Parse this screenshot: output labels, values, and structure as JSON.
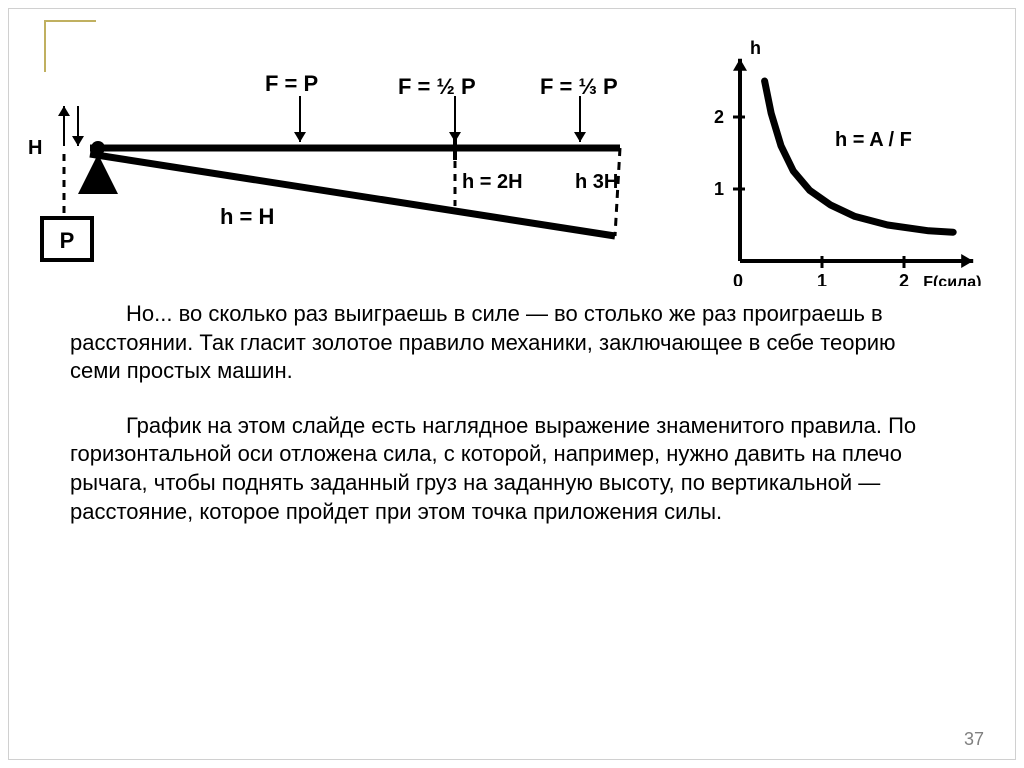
{
  "page_number": "37",
  "paragraphs": {
    "p1": "Но... во сколько раз выиграешь в силе — во столько же раз проиграешь в расстоянии. Так гласит золотое правило механики, заключающее в себе теорию семи простых машин.",
    "p2": "График на этом слайде есть наглядное выражение знаменитого правила. По  горизонтальной оси отложена сила, с которой, например, нужно давить на плечо рычага, чтобы поднять заданный груз на заданную высоту, по вертикальной — расстояние, которое пройдет при этом точка приложения силы."
  },
  "lever_diagram": {
    "labels": {
      "top1": "F = P",
      "top2": "F = ½ P",
      "top3": "F = ⅓ P",
      "bottom_h": "h = H",
      "mid_h2": "h = 2H",
      "mid_h3": "h  3H",
      "weight": "P",
      "left_marker": "H"
    },
    "colors": {
      "stroke": "#000000",
      "bg": "#ffffff"
    },
    "stroke_widths": {
      "thick": 7,
      "med": 4,
      "thin": 2,
      "dash": 3
    }
  },
  "chart": {
    "type": "line",
    "formula": "h = A / F",
    "x_label": "F(сила)",
    "y_label": "h",
    "x_ticks": [
      "0",
      "1",
      "2"
    ],
    "y_ticks": [
      "1",
      "2"
    ],
    "xlim": [
      0,
      2.6
    ],
    "ylim": [
      0,
      2.6
    ],
    "curve_points": [
      [
        0.3,
        2.5
      ],
      [
        0.38,
        2.05
      ],
      [
        0.5,
        1.6
      ],
      [
        0.65,
        1.25
      ],
      [
        0.85,
        0.98
      ],
      [
        1.1,
        0.78
      ],
      [
        1.4,
        0.62
      ],
      [
        1.8,
        0.5
      ],
      [
        2.3,
        0.42
      ],
      [
        2.6,
        0.4
      ]
    ],
    "colors": {
      "axis": "#000000",
      "curve": "#000000",
      "bg": "#ffffff"
    },
    "stroke_widths": {
      "axis": 4,
      "tick": 3,
      "curve": 7
    },
    "font_size_ticks": 18,
    "font_size_formula": 20
  }
}
